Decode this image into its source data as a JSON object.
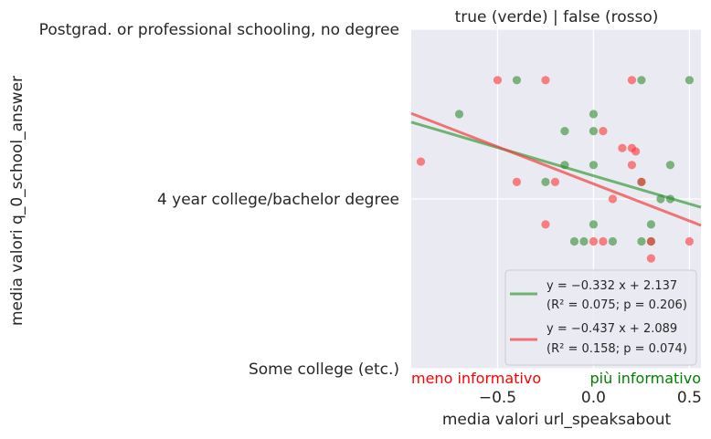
{
  "chart_data": {
    "type": "scatter",
    "title": "true (verde) | false (rosso)",
    "xlabel": "media valori url_speaksabout",
    "ylabel": "media valori q_0_school_answer",
    "xlim": [
      -0.95,
      0.56
    ],
    "ylim": [
      1.0,
      3.0
    ],
    "x_ticks": [
      {
        "value": -0.5,
        "label": "−0.5"
      },
      {
        "value": 0.0,
        "label": "0.0"
      },
      {
        "value": 0.5,
        "label": "0.5"
      }
    ],
    "y_ticks": [
      {
        "value": 1,
        "label": "Some college (etc.)"
      },
      {
        "value": 2,
        "label": "4 year college/bachelor degree"
      },
      {
        "value": 3,
        "label": "Postgrad. or professional schooling, no degree"
      }
    ],
    "grid": true,
    "background": "#eaeaf2",
    "annotations": {
      "left": {
        "text": "meno informativo",
        "color": "#ff0000"
      },
      "right": {
        "text": "più informativo",
        "color": "#008000"
      }
    },
    "legend_position": "bottom-right",
    "series": [
      {
        "color": "#2e8b2e",
        "points": [
          {
            "x": -0.4,
            "y": 2.7
          },
          {
            "x": 0.25,
            "y": 2.7
          },
          {
            "x": 0.5,
            "y": 2.7
          },
          {
            "x": -0.7,
            "y": 2.5
          },
          {
            "x": 0.0,
            "y": 2.5
          },
          {
            "x": -0.15,
            "y": 2.4
          },
          {
            "x": 0.0,
            "y": 2.4
          },
          {
            "x": -0.15,
            "y": 2.2
          },
          {
            "x": 0.0,
            "y": 2.2
          },
          {
            "x": 0.4,
            "y": 2.2
          },
          {
            "x": -0.25,
            "y": 2.1
          },
          {
            "x": 0.25,
            "y": 2.1
          },
          {
            "x": 0.35,
            "y": 2.0
          },
          {
            "x": 0.4,
            "y": 2.0
          },
          {
            "x": 0.0,
            "y": 1.85
          },
          {
            "x": 0.3,
            "y": 1.85
          },
          {
            "x": -0.1,
            "y": 1.75
          },
          {
            "x": -0.05,
            "y": 1.75
          },
          {
            "x": 0.1,
            "y": 1.75
          },
          {
            "x": 0.25,
            "y": 1.75
          },
          {
            "x": 0.3,
            "y": 1.75
          }
        ]
      },
      {
        "color": "#ff3333",
        "points": [
          {
            "x": -0.5,
            "y": 2.7
          },
          {
            "x": -0.25,
            "y": 2.7
          },
          {
            "x": 0.2,
            "y": 2.7
          },
          {
            "x": 0.05,
            "y": 2.4
          },
          {
            "x": 0.15,
            "y": 2.3
          },
          {
            "x": 0.2,
            "y": 2.3
          },
          {
            "x": 0.22,
            "y": 2.28
          },
          {
            "x": -0.9,
            "y": 2.22
          },
          {
            "x": 0.2,
            "y": 2.2
          },
          {
            "x": -0.4,
            "y": 2.1
          },
          {
            "x": -0.2,
            "y": 2.1
          },
          {
            "x": 0.25,
            "y": 2.1
          },
          {
            "x": 0.1,
            "y": 2.0
          },
          {
            "x": -0.25,
            "y": 1.85
          },
          {
            "x": 0.0,
            "y": 1.75
          },
          {
            "x": 0.05,
            "y": 1.75
          },
          {
            "x": 0.3,
            "y": 1.75
          },
          {
            "x": 0.5,
            "y": 1.75
          },
          {
            "x": 0.3,
            "y": 1.65
          }
        ]
      }
    ],
    "regressions": [
      {
        "color": "#3a9a3a",
        "slope": -0.332,
        "intercept": 2.137,
        "equation": "y = −0.332 x + 2.137",
        "stats": "(R² = 0.075; p = 0.206)"
      },
      {
        "color": "#f04040",
        "slope": -0.437,
        "intercept": 2.089,
        "equation": "y = −0.437 x + 2.089",
        "stats": "(R² = 0.158; p = 0.074)"
      }
    ]
  }
}
